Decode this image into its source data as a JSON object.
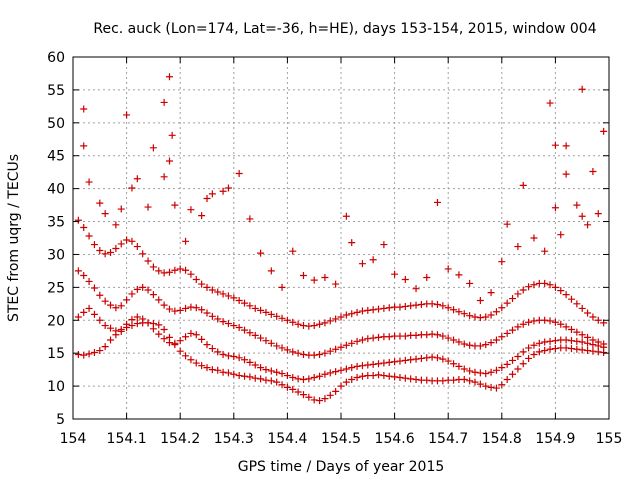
{
  "chart_data": {
    "type": "scatter",
    "title": "Rec. auck (Lon=174, Lat=-36, h=HE), days 153-154, 2015, window 004",
    "xlabel": "GPS time / Days of year 2015",
    "ylabel": "STEC from uqrg / TECUs",
    "xlim": [
      154,
      155
    ],
    "ylim": [
      5,
      60
    ],
    "xticks": [
      154,
      154.1,
      154.2,
      154.3,
      154.4,
      154.5,
      154.6,
      154.7,
      154.8,
      154.9,
      155
    ],
    "xtick_labels": [
      "154",
      "154.1",
      "154.2",
      "154.3",
      "154.4",
      "154.5",
      "154.6",
      "154.7",
      "154.8",
      "154.9",
      "155"
    ],
    "yticks": [
      5,
      10,
      15,
      20,
      25,
      30,
      35,
      40,
      45,
      50,
      55,
      60
    ],
    "ytick_labels": [
      "5",
      "10",
      "15",
      "20",
      "25",
      "30",
      "35",
      "40",
      "45",
      "50",
      "55",
      "60"
    ],
    "grid": true,
    "marker": "plus",
    "color": "#cc0000",
    "series": [
      {
        "x": [
          154.01,
          154.02,
          154.03,
          154.04,
          154.05,
          154.06,
          154.07,
          154.08,
          154.09,
          154.1,
          154.11,
          154.12,
          154.13,
          154.14,
          154.15,
          154.16,
          154.17,
          154.18,
          154.19,
          154.2,
          154.21,
          154.22,
          154.23,
          154.24,
          154.25,
          154.26,
          154.27,
          154.28,
          154.29,
          154.3,
          154.31,
          154.32,
          154.33,
          154.34,
          154.35,
          154.36,
          154.37,
          154.38,
          154.39,
          154.4,
          154.41,
          154.42,
          154.43,
          154.44,
          154.45,
          154.46,
          154.47,
          154.48,
          154.49,
          154.5,
          154.51,
          154.52,
          154.53,
          154.54,
          154.55,
          154.56,
          154.57,
          154.58,
          154.59,
          154.6,
          154.61,
          154.62,
          154.63,
          154.64,
          154.65,
          154.66,
          154.67,
          154.68,
          154.69,
          154.7,
          154.71,
          154.72,
          154.73,
          154.74,
          154.75,
          154.76,
          154.77,
          154.78,
          154.79,
          154.8,
          154.81,
          154.82,
          154.83,
          154.84,
          154.85,
          154.86,
          154.87,
          154.88,
          154.89,
          154.9,
          154.91,
          154.92,
          154.93,
          154.94,
          154.95,
          154.96,
          154.97,
          154.98,
          154.99
        ],
        "y": [
          14.8,
          14.7,
          14.9,
          15.1,
          15.4,
          16.0,
          17.0,
          17.8,
          18.3,
          18.9,
          19.2,
          19.5,
          19.6,
          19.6,
          19.5,
          19.3,
          18.6,
          17.4,
          16.3,
          15.3,
          14.6,
          14.0,
          13.5,
          13.1,
          12.8,
          12.5,
          12.4,
          12.1,
          12.0,
          11.8,
          11.6,
          11.5,
          11.4,
          11.2,
          11.1,
          10.9,
          10.8,
          10.6,
          10.2,
          9.8,
          9.5,
          9.1,
          8.7,
          8.3,
          7.9,
          7.8,
          8.1,
          8.6,
          9.2,
          10.0,
          10.6,
          11.0,
          11.3,
          11.5,
          11.6,
          11.6,
          11.7,
          11.6,
          11.5,
          11.4,
          11.3,
          11.2,
          11.1,
          11.0,
          10.9,
          10.9,
          10.8,
          10.8,
          10.8,
          10.9,
          10.9,
          11.0,
          11.0,
          10.8,
          10.6,
          10.3,
          10.0,
          9.8,
          9.7,
          10.2,
          11.0,
          11.8,
          12.6,
          13.4,
          14.2,
          14.8,
          15.2,
          15.4,
          15.6,
          15.7,
          15.8,
          15.8,
          15.7,
          15.6,
          15.5,
          15.4,
          15.3,
          15.2,
          15.1
        ]
      },
      {
        "x": [
          154.01,
          154.02,
          154.03,
          154.04,
          154.05,
          154.06,
          154.07,
          154.08,
          154.09,
          154.1,
          154.11,
          154.12,
          154.13,
          154.14,
          154.15,
          154.16,
          154.17,
          154.18,
          154.19,
          154.2,
          154.21,
          154.22,
          154.23,
          154.24,
          154.25,
          154.26,
          154.27,
          154.28,
          154.29,
          154.3,
          154.31,
          154.32,
          154.33,
          154.34,
          154.35,
          154.36,
          154.37,
          154.38,
          154.39,
          154.4,
          154.41,
          154.42,
          154.43,
          154.44,
          154.45,
          154.46,
          154.47,
          154.48,
          154.49,
          154.5,
          154.51,
          154.52,
          154.53,
          154.54,
          154.55,
          154.56,
          154.57,
          154.58,
          154.59,
          154.6,
          154.61,
          154.62,
          154.63,
          154.64,
          154.65,
          154.66,
          154.67,
          154.68,
          154.69,
          154.7,
          154.71,
          154.72,
          154.73,
          154.74,
          154.75,
          154.76,
          154.77,
          154.78,
          154.79,
          154.8,
          154.81,
          154.82,
          154.83,
          154.84,
          154.85,
          154.86,
          154.87,
          154.88,
          154.89,
          154.9,
          154.91,
          154.92,
          154.93,
          154.94,
          154.95,
          154.96,
          154.97,
          154.98,
          154.99
        ],
        "y": [
          20.5,
          21.2,
          21.8,
          20.9,
          20.0,
          19.2,
          18.8,
          18.4,
          18.6,
          19.4,
          20.1,
          20.5,
          20.2,
          19.6,
          18.7,
          17.9,
          17.2,
          16.6,
          16.5,
          16.9,
          17.5,
          18.0,
          17.8,
          17.1,
          16.3,
          15.7,
          15.2,
          14.8,
          14.6,
          14.5,
          14.3,
          14.0,
          13.6,
          13.2,
          12.8,
          12.5,
          12.3,
          12.1,
          11.9,
          11.6,
          11.3,
          11.1,
          11.0,
          11.1,
          11.3,
          11.5,
          11.8,
          12.0,
          12.2,
          12.4,
          12.6,
          12.8,
          13.0,
          13.1,
          13.2,
          13.3,
          13.4,
          13.5,
          13.6,
          13.7,
          13.8,
          13.9,
          14.0,
          14.1,
          14.2,
          14.3,
          14.4,
          14.3,
          14.1,
          13.8,
          13.4,
          13.0,
          12.6,
          12.3,
          12.1,
          12.0,
          11.9,
          12.1,
          12.4,
          12.8,
          13.3,
          13.9,
          14.5,
          15.2,
          15.8,
          16.2,
          16.5,
          16.7,
          16.8,
          16.9,
          17.0,
          17.0,
          16.9,
          16.8,
          16.7,
          16.5,
          16.3,
          16.1,
          15.9
        ]
      },
      {
        "x": [
          154.01,
          154.02,
          154.03,
          154.04,
          154.05,
          154.06,
          154.07,
          154.08,
          154.09,
          154.1,
          154.11,
          154.12,
          154.13,
          154.14,
          154.15,
          154.16,
          154.17,
          154.18,
          154.19,
          154.2,
          154.21,
          154.22,
          154.23,
          154.24,
          154.25,
          154.26,
          154.27,
          154.28,
          154.29,
          154.3,
          154.31,
          154.32,
          154.33,
          154.34,
          154.35,
          154.36,
          154.37,
          154.38,
          154.39,
          154.4,
          154.41,
          154.42,
          154.43,
          154.44,
          154.45,
          154.46,
          154.47,
          154.48,
          154.49,
          154.5,
          154.51,
          154.52,
          154.53,
          154.54,
          154.55,
          154.56,
          154.57,
          154.58,
          154.59,
          154.6,
          154.61,
          154.62,
          154.63,
          154.64,
          154.65,
          154.66,
          154.67,
          154.68,
          154.69,
          154.7,
          154.71,
          154.72,
          154.73,
          154.74,
          154.75,
          154.76,
          154.77,
          154.78,
          154.79,
          154.8,
          154.81,
          154.82,
          154.83,
          154.84,
          154.85,
          154.86,
          154.87,
          154.88,
          154.89,
          154.9,
          154.91,
          154.92,
          154.93,
          154.94,
          154.95,
          154.96,
          154.97,
          154.98,
          154.99
        ],
        "y": [
          27.5,
          26.8,
          25.9,
          24.9,
          23.8,
          22.9,
          22.3,
          21.9,
          22.2,
          23.1,
          24.0,
          24.7,
          25.0,
          24.6,
          23.9,
          23.1,
          22.3,
          21.7,
          21.4,
          21.5,
          21.8,
          22.0,
          21.9,
          21.6,
          21.1,
          20.6,
          20.2,
          19.8,
          19.5,
          19.2,
          18.9,
          18.5,
          18.1,
          17.7,
          17.3,
          16.9,
          16.5,
          16.1,
          15.8,
          15.5,
          15.2,
          15.0,
          14.8,
          14.7,
          14.7,
          14.8,
          15.0,
          15.3,
          15.6,
          15.9,
          16.2,
          16.5,
          16.8,
          17.0,
          17.2,
          17.3,
          17.4,
          17.5,
          17.5,
          17.6,
          17.6,
          17.6,
          17.7,
          17.7,
          17.8,
          17.8,
          17.9,
          17.8,
          17.6,
          17.3,
          17.0,
          16.7,
          16.4,
          16.2,
          16.1,
          16.1,
          16.3,
          16.6,
          17.0,
          17.5,
          18.0,
          18.5,
          19.0,
          19.4,
          19.7,
          19.9,
          20.0,
          20.0,
          19.9,
          19.7,
          19.4,
          19.0,
          18.6,
          18.2,
          17.8,
          17.4,
          17.0,
          16.7,
          16.4
        ]
      },
      {
        "x": [
          154.01,
          154.02,
          154.03,
          154.04,
          154.05,
          154.06,
          154.07,
          154.08,
          154.09,
          154.1,
          154.11,
          154.12,
          154.13,
          154.14,
          154.15,
          154.16,
          154.17,
          154.18,
          154.19,
          154.2,
          154.21,
          154.22,
          154.23,
          154.24,
          154.25,
          154.26,
          154.27,
          154.28,
          154.29,
          154.3,
          154.31,
          154.32,
          154.33,
          154.34,
          154.35,
          154.36,
          154.37,
          154.38,
          154.39,
          154.4,
          154.41,
          154.42,
          154.43,
          154.44,
          154.45,
          154.46,
          154.47,
          154.48,
          154.49,
          154.5,
          154.51,
          154.52,
          154.53,
          154.54,
          154.55,
          154.56,
          154.57,
          154.58,
          154.59,
          154.6,
          154.61,
          154.62,
          154.63,
          154.64,
          154.65,
          154.66,
          154.67,
          154.68,
          154.69,
          154.7,
          154.71,
          154.72,
          154.73,
          154.74,
          154.75,
          154.76,
          154.77,
          154.78,
          154.79,
          154.8,
          154.81,
          154.82,
          154.83,
          154.84,
          154.85,
          154.86,
          154.87,
          154.88,
          154.89,
          154.9,
          154.91,
          154.92,
          154.93,
          154.94,
          154.95,
          154.96,
          154.97,
          154.98,
          154.99
        ],
        "y": [
          35.2,
          34.1,
          32.8,
          31.5,
          30.6,
          30.1,
          30.3,
          30.9,
          31.6,
          32.2,
          32.0,
          31.2,
          30.1,
          29.0,
          28.1,
          27.5,
          27.2,
          27.3,
          27.6,
          27.8,
          27.6,
          27.0,
          26.2,
          25.5,
          25.0,
          24.6,
          24.3,
          24.0,
          23.7,
          23.4,
          23.0,
          22.6,
          22.2,
          21.8,
          21.5,
          21.2,
          20.9,
          20.6,
          20.3,
          20.0,
          19.7,
          19.4,
          19.2,
          19.1,
          19.2,
          19.4,
          19.6,
          19.9,
          20.2,
          20.5,
          20.8,
          21.0,
          21.2,
          21.4,
          21.5,
          21.6,
          21.7,
          21.8,
          21.9,
          22.0,
          22.0,
          22.1,
          22.2,
          22.3,
          22.4,
          22.5,
          22.5,
          22.4,
          22.2,
          21.9,
          21.6,
          21.3,
          21.0,
          20.7,
          20.5,
          20.4,
          20.5,
          20.8,
          21.3,
          21.9,
          22.6,
          23.3,
          24.0,
          24.6,
          25.1,
          25.4,
          25.6,
          25.6,
          25.4,
          25.0,
          24.5,
          23.9,
          23.2,
          22.5,
          21.8,
          21.1,
          20.5,
          20.0,
          19.6
        ]
      },
      {
        "x": [
          154.02,
          154.03,
          154.05,
          154.06,
          154.08,
          154.09,
          154.11,
          154.12,
          154.14,
          154.15,
          154.17,
          154.18,
          154.19,
          154.21,
          154.22,
          154.24,
          154.25,
          154.26,
          154.28,
          154.29,
          154.31,
          154.33,
          154.35,
          154.37,
          154.39,
          154.41,
          154.43,
          154.45,
          154.47,
          154.49,
          154.51,
          154.52,
          154.54,
          154.56,
          154.58,
          154.6,
          154.62,
          154.64,
          154.66,
          154.68,
          154.7,
          154.72,
          154.74,
          154.76,
          154.78,
          154.8,
          154.81,
          154.83,
          154.84,
          154.86,
          154.88,
          154.9,
          154.91,
          154.92,
          154.94,
          154.95,
          154.96,
          154.97,
          154.98,
          154.99
        ],
        "y": [
          46.5,
          41.0,
          37.8,
          36.2,
          34.5,
          36.9,
          40.1,
          41.5,
          37.2,
          46.2,
          41.8,
          44.2,
          37.5,
          32.0,
          36.8,
          35.9,
          38.5,
          39.2,
          39.6,
          40.1,
          42.3,
          35.4,
          30.2,
          27.5,
          25.0,
          30.5,
          26.8,
          26.1,
          26.5,
          25.5,
          35.8,
          31.8,
          28.6,
          29.2,
          31.5,
          27.0,
          26.2,
          24.8,
          26.5,
          37.9,
          27.8,
          26.9,
          25.6,
          23.0,
          24.2,
          28.9,
          34.6,
          31.2,
          40.5,
          32.5,
          30.5,
          37.1,
          33.0,
          42.2,
          37.5,
          35.8,
          34.5,
          42.6,
          36.2,
          48.7
        ]
      },
      {
        "x": [
          154.02,
          154.1,
          154.17,
          154.18,
          154.185,
          154.89,
          154.95,
          154.92,
          154.9
        ],
        "y": [
          52.1,
          51.2,
          53.1,
          57.0,
          48.1,
          53.0,
          55.1,
          46.5,
          46.6
        ]
      }
    ]
  }
}
